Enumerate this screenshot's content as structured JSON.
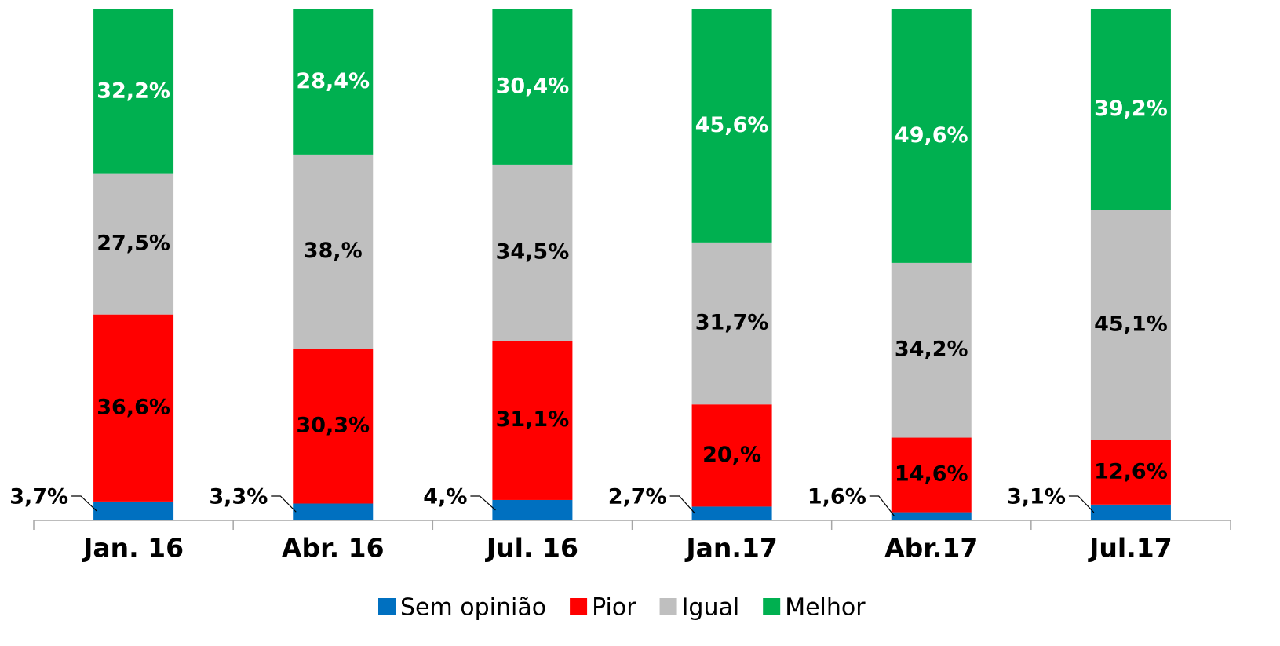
{
  "chart_data": {
    "type": "stacked_bar",
    "categories": [
      "Jan. 16",
      "Abr. 16",
      "Jul. 16",
      "Jan.17",
      "Abr.17",
      "Jul.17"
    ],
    "series": [
      {
        "name": "Sem opinião",
        "color": "#0070c0",
        "values": [
          3.7,
          3.3,
          4,
          2.7,
          1.6,
          3.1
        ],
        "value_labels": [
          "3,7%",
          "3,3%",
          "4,%",
          "2,7%",
          "1,6%",
          "3,1%"
        ]
      },
      {
        "name": "Pior",
        "color": "#ff0000",
        "values": [
          36.6,
          30.3,
          31.1,
          20,
          14.6,
          12.6
        ],
        "value_labels": [
          "36,6%",
          "30,3%",
          "31,1%",
          "20,%",
          "14,6%",
          "12,6%"
        ]
      },
      {
        "name": "Igual",
        "color": "#bfbfbf",
        "values": [
          27.5,
          38,
          34.5,
          31.7,
          34.2,
          45.1
        ],
        "value_labels": [
          "27,5%",
          "38,%",
          "34,5%",
          "31,7%",
          "34,2%",
          "45,1%"
        ]
      },
      {
        "name": "Melhor",
        "color": "#00b050",
        "values": [
          32.2,
          28.4,
          30.4,
          45.6,
          49.6,
          39.2
        ],
        "value_labels": [
          "32,2%",
          "28,4%",
          "30,4%",
          "45,6%",
          "49,6%",
          "39,2%"
        ]
      }
    ]
  }
}
